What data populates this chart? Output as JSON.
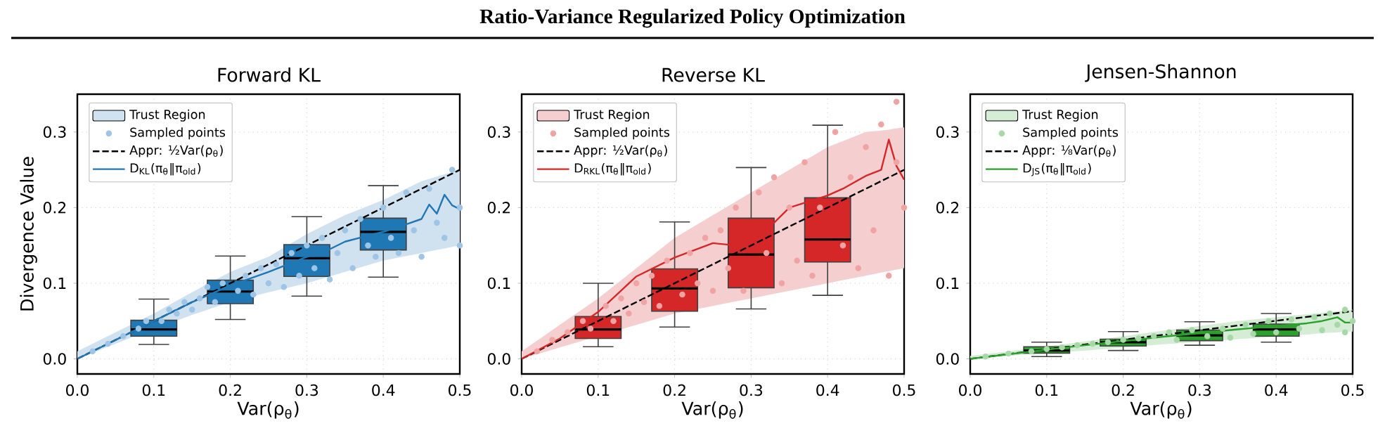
{
  "chart_data": [
    {
      "type": "scatter",
      "title": "Forward KL",
      "xlabel": "Var(ρ$_{θ}$)",
      "ylabel": "Divergence Value",
      "annotations": [
        "Ratio-Variance Regularized Policy Optimization"
      ],
      "xlim": [
        0,
        0.5
      ],
      "ylim": [
        -0.02,
        0.35
      ],
      "xticks": [
        {
          "value": 0,
          "label": "0.0"
        },
        {
          "value": 0.1,
          "label": "0.1"
        },
        {
          "value": 0.2,
          "label": "0.2"
        },
        {
          "value": 0.3,
          "label": "0.3"
        },
        {
          "value": 0.4,
          "label": "0.4"
        },
        {
          "value": 0.5,
          "label": "0.5"
        }
      ],
      "yticks": [
        {
          "value": 0,
          "label": "0.0"
        },
        {
          "value": 0.1,
          "label": "0.1"
        },
        {
          "value": 0.2,
          "label": "0.2"
        },
        {
          "value": 0.3,
          "label": "0.3"
        }
      ],
      "grid": true,
      "legend": "top left",
      "series": [
        {
          "type": "area",
          "name": "Trust Region",
          "color": "#d0e1f0"
        },
        {
          "name": "Sampled points",
          "color": "#9ec5e5",
          "marker": "circle",
          "x": [
            0.02,
            0.04,
            0.06,
            0.08,
            0.09,
            0.11,
            0.12,
            0.13,
            0.14,
            0.15,
            0.16,
            0.17,
            0.18,
            0.19,
            0.21,
            0.22,
            0.23,
            0.24,
            0.25,
            0.26,
            0.27,
            0.28,
            0.29,
            0.3,
            0.31,
            0.32,
            0.33,
            0.34,
            0.35,
            0.36,
            0.37,
            0.38,
            0.39,
            0.4,
            0.41,
            0.42,
            0.43,
            0.44,
            0.45,
            0.46,
            0.47,
            0.48,
            0.49,
            0.5,
            0.5
          ],
          "values": [
            0.01,
            0.02,
            0.03,
            0.04,
            0.05,
            0.05,
            0.065,
            0.06,
            0.075,
            0.065,
            0.08,
            0.095,
            0.075,
            0.1,
            0.09,
            0.11,
            0.085,
            0.12,
            0.1,
            0.125,
            0.095,
            0.14,
            0.11,
            0.15,
            0.12,
            0.16,
            0.105,
            0.14,
            0.17,
            0.12,
            0.185,
            0.15,
            0.135,
            0.2,
            0.16,
            0.14,
            0.22,
            0.17,
            0.135,
            0.225,
            0.18,
            0.16,
            0.25,
            0.2,
            0.15
          ]
        },
        {
          "type": "line",
          "name": "Appr: ½Var(ρ$_{θ}$)",
          "color": "#000000",
          "line_style": "dashed",
          "x": [
            0,
            0.5
          ],
          "values": [
            0,
            0.25
          ]
        },
        {
          "type": "line",
          "name": "D$_{KL}$(π$_{θ}$‖π$_{old}$)",
          "color": "#1f77b4",
          "line_style": "solid",
          "x": [
            0,
            0.05,
            0.1,
            0.15,
            0.2,
            0.25,
            0.3,
            0.33,
            0.35,
            0.4,
            0.43,
            0.45,
            0.46,
            0.47,
            0.48,
            0.49,
            0.5
          ],
          "values": [
            0,
            0.025,
            0.05,
            0.075,
            0.097,
            0.115,
            0.135,
            0.145,
            0.155,
            0.168,
            0.178,
            0.185,
            0.204,
            0.192,
            0.217,
            0.203,
            0.198
          ],
          "lower": [
            0,
            0.02,
            0.04,
            0.058,
            0.075,
            0.088,
            0.1,
            0.109,
            0.115,
            0.13,
            0.136,
            0.14,
            0.142,
            0.144,
            0.146,
            0.148,
            0.15
          ],
          "upper": [
            0.01,
            0.035,
            0.06,
            0.088,
            0.115,
            0.135,
            0.165,
            0.18,
            0.19,
            0.21,
            0.225,
            0.235,
            0.238,
            0.241,
            0.244,
            0.247,
            0.25
          ]
        },
        {
          "type": "box",
          "color": "#1f77b4",
          "x": [
            0.1,
            0.2,
            0.3,
            0.4
          ],
          "boxes": [
            {
              "low": 0.019,
              "q1": 0.03,
              "median": 0.039,
              "q3": 0.051,
              "high": 0.079
            },
            {
              "low": 0.052,
              "q1": 0.073,
              "median": 0.089,
              "q3": 0.104,
              "high": 0.136
            },
            {
              "low": 0.083,
              "q1": 0.109,
              "median": 0.133,
              "q3": 0.151,
              "high": 0.188
            },
            {
              "low": 0.108,
              "q1": 0.144,
              "median": 0.168,
              "q3": 0.186,
              "high": 0.229
            }
          ]
        }
      ]
    },
    {
      "type": "scatter",
      "title": "Reverse KL",
      "xlabel": "Var(ρ$_{θ}$)",
      "xlim": [
        0,
        0.5
      ],
      "ylim": [
        -0.02,
        0.35
      ],
      "xticks": [
        {
          "value": 0,
          "label": "0.0"
        },
        {
          "value": 0.1,
          "label": "0.1"
        },
        {
          "value": 0.2,
          "label": "0.2"
        },
        {
          "value": 0.3,
          "label": "0.3"
        },
        {
          "value": 0.4,
          "label": "0.4"
        },
        {
          "value": 0.5,
          "label": "0.5"
        }
      ],
      "yticks": [
        {
          "value": 0,
          "label": "0.0"
        },
        {
          "value": 0.1,
          "label": "0.1"
        },
        {
          "value": 0.2,
          "label": "0.2"
        },
        {
          "value": 0.3,
          "label": "0.3"
        }
      ],
      "grid": true,
      "legend": "top left",
      "series": [
        {
          "type": "area",
          "name": "Trust Region",
          "color": "#f5cfd0"
        },
        {
          "name": "Sampled points",
          "color": "#f0a3a3",
          "marker": "circle",
          "x": [
            0.02,
            0.04,
            0.06,
            0.08,
            0.09,
            0.11,
            0.12,
            0.13,
            0.14,
            0.15,
            0.16,
            0.17,
            0.18,
            0.19,
            0.21,
            0.22,
            0.23,
            0.24,
            0.25,
            0.26,
            0.27,
            0.28,
            0.29,
            0.31,
            0.32,
            0.33,
            0.34,
            0.35,
            0.36,
            0.37,
            0.38,
            0.39,
            0.41,
            0.42,
            0.43,
            0.44,
            0.45,
            0.46,
            0.47,
            0.48,
            0.49,
            0.5,
            0.49
          ],
          "values": [
            0.01,
            0.025,
            0.035,
            0.05,
            0.04,
            0.07,
            0.05,
            0.08,
            0.06,
            0.1,
            0.075,
            0.11,
            0.07,
            0.13,
            0.085,
            0.14,
            0.1,
            0.16,
            0.09,
            0.17,
            0.12,
            0.2,
            0.09,
            0.22,
            0.14,
            0.24,
            0.1,
            0.2,
            0.13,
            0.26,
            0.11,
            0.2,
            0.3,
            0.15,
            0.24,
            0.12,
            0.28,
            0.17,
            0.31,
            0.11,
            0.26,
            0.2,
            0.34
          ]
        },
        {
          "type": "line",
          "name": "Appr: ½Var(ρ$_{θ}$)",
          "color": "#000000",
          "line_style": "dashed",
          "x": [
            0,
            0.5
          ],
          "values": [
            0,
            0.25
          ]
        },
        {
          "type": "line",
          "name": "D$_{RKL}$(π$_{θ}$‖π$_{old}$)",
          "color": "#d62728",
          "line_style": "solid",
          "x": [
            0,
            0.05,
            0.1,
            0.15,
            0.2,
            0.25,
            0.28,
            0.3,
            0.33,
            0.35,
            0.4,
            0.42,
            0.45,
            0.47,
            0.48,
            0.49,
            0.5
          ],
          "values": [
            0,
            0.027,
            0.062,
            0.109,
            0.134,
            0.153,
            0.15,
            0.178,
            0.18,
            0.2,
            0.216,
            0.225,
            0.242,
            0.25,
            0.29,
            0.255,
            0.237
          ],
          "lower": [
            0,
            0.015,
            0.03,
            0.045,
            0.06,
            0.07,
            0.076,
            0.08,
            0.086,
            0.09,
            0.1,
            0.104,
            0.11,
            0.114,
            0.116,
            0.118,
            0.12
          ],
          "upper": [
            0.01,
            0.045,
            0.08,
            0.12,
            0.16,
            0.19,
            0.208,
            0.22,
            0.238,
            0.25,
            0.28,
            0.288,
            0.3,
            0.302,
            0.303,
            0.305,
            0.306
          ]
        },
        {
          "type": "box",
          "color": "#d62728",
          "x": [
            0.1,
            0.2,
            0.3,
            0.4
          ],
          "boxes": [
            {
              "low": 0.016,
              "q1": 0.027,
              "median": 0.039,
              "q3": 0.056,
              "high": 0.1
            },
            {
              "low": 0.042,
              "q1": 0.063,
              "median": 0.093,
              "q3": 0.119,
              "high": 0.181
            },
            {
              "low": 0.066,
              "q1": 0.094,
              "median": 0.138,
              "q3": 0.186,
              "high": 0.253
            },
            {
              "low": 0.084,
              "q1": 0.128,
              "median": 0.158,
              "q3": 0.213,
              "high": 0.309
            }
          ]
        }
      ]
    },
    {
      "type": "scatter",
      "title": "Jensen-Shannon",
      "xlabel": "Var(ρ$_{θ}$)",
      "xlim": [
        0,
        0.5
      ],
      "ylim": [
        -0.02,
        0.35
      ],
      "xticks": [
        {
          "value": 0,
          "label": "0.0"
        },
        {
          "value": 0.1,
          "label": "0.1"
        },
        {
          "value": 0.2,
          "label": "0.2"
        },
        {
          "value": 0.3,
          "label": "0.3"
        },
        {
          "value": 0.4,
          "label": "0.4"
        },
        {
          "value": 0.5,
          "label": "0.5"
        }
      ],
      "yticks": [
        {
          "value": 0,
          "label": "0.0"
        },
        {
          "value": 0.1,
          "label": "0.1"
        },
        {
          "value": 0.2,
          "label": "0.2"
        },
        {
          "value": 0.3,
          "label": "0.3"
        }
      ],
      "grid": true,
      "legend": "top left",
      "series": [
        {
          "type": "area",
          "name": "Trust Region",
          "color": "#d5ecd5"
        },
        {
          "name": "Sampled points",
          "color": "#a7d9a7",
          "marker": "circle",
          "x": [
            0.02,
            0.05,
            0.08,
            0.1,
            0.12,
            0.14,
            0.16,
            0.18,
            0.2,
            0.22,
            0.24,
            0.26,
            0.27,
            0.29,
            0.31,
            0.33,
            0.34,
            0.36,
            0.37,
            0.39,
            0.4,
            0.42,
            0.43,
            0.45,
            0.46,
            0.47,
            0.48,
            0.49,
            0.5,
            0.49
          ],
          "values": [
            0.003,
            0.007,
            0.01,
            0.013,
            0.015,
            0.018,
            0.02,
            0.022,
            0.025,
            0.027,
            0.03,
            0.035,
            0.025,
            0.038,
            0.03,
            0.04,
            0.028,
            0.045,
            0.033,
            0.05,
            0.035,
            0.052,
            0.04,
            0.055,
            0.038,
            0.06,
            0.045,
            0.065,
            0.05,
            0.035
          ]
        },
        {
          "type": "line",
          "name": "Appr: ⅛Var(ρ$_{θ}$)",
          "color": "#000000",
          "line_style": "dashed",
          "x": [
            0,
            0.5
          ],
          "values": [
            0,
            0.063
          ]
        },
        {
          "type": "line",
          "name": "D$_{JS}$(π$_{θ}$‖π$_{old}$)",
          "color": "#2ca02c",
          "line_style": "solid",
          "x": [
            0,
            0.05,
            0.15,
            0.25,
            0.35,
            0.44,
            0.46,
            0.48,
            0.49,
            0.5
          ],
          "values": [
            0,
            0.006,
            0.018,
            0.029,
            0.039,
            0.047,
            0.05,
            0.055,
            0.048,
            0.048
          ],
          "lower": [
            0,
            0.004,
            0.011,
            0.019,
            0.026,
            0.032,
            0.034,
            0.035,
            0.036,
            0.036
          ],
          "upper": [
            0.004,
            0.01,
            0.023,
            0.037,
            0.05,
            0.059,
            0.061,
            0.063,
            0.064,
            0.065
          ]
        },
        {
          "type": "box",
          "color": "#2ca02c",
          "x": [
            0.1,
            0.2,
            0.3,
            0.4
          ],
          "boxes": [
            {
              "low": 0.003,
              "q1": 0.0075,
              "median": 0.011,
              "q3": 0.016,
              "high": 0.022
            },
            {
              "low": 0.011,
              "q1": 0.017,
              "median": 0.022,
              "q3": 0.026,
              "high": 0.036
            },
            {
              "low": 0.018,
              "q1": 0.024,
              "median": 0.031,
              "q3": 0.038,
              "high": 0.049
            },
            {
              "low": 0.022,
              "q1": 0.03,
              "median": 0.039,
              "q3": 0.046,
              "high": 0.06
            }
          ]
        }
      ]
    }
  ]
}
